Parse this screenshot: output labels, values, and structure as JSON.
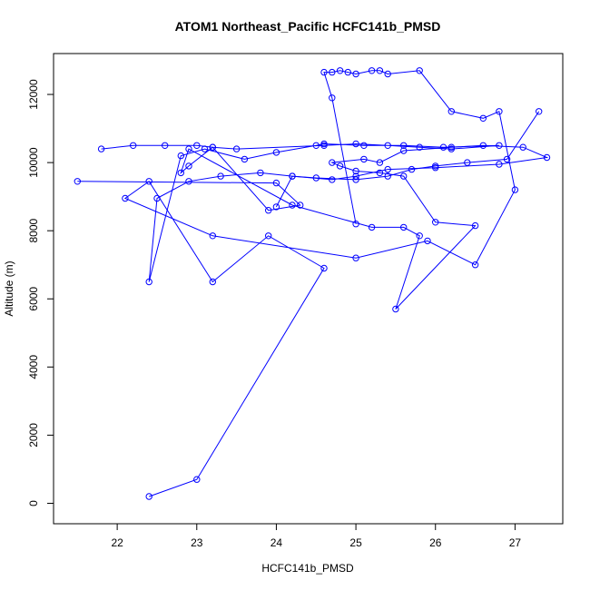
{
  "chart_data": {
    "type": "line",
    "title": "ATOM1 Northeast_Pacific HCFC141b_PMSD",
    "xlabel": "HCFC141b_PMSD",
    "ylabel": "Altitude (m)",
    "xlim": [
      21.2,
      27.6
    ],
    "ylim": [
      -600,
      13200
    ],
    "x_ticks": [
      22,
      23,
      24,
      25,
      26,
      27
    ],
    "y_ticks": [
      0,
      2000,
      4000,
      6000,
      8000,
      10000,
      12000
    ],
    "series_color": "#0000ff",
    "marker": "open-circle",
    "series": [
      {
        "x": [
          21.8,
          22.2,
          22.6,
          23.0,
          23.2,
          23.5,
          24.6,
          25.0,
          25.4,
          25.8,
          26.2,
          26.8,
          26.1,
          25.6,
          25.1,
          24.6,
          24.5,
          24.0,
          23.6,
          23.1,
          22.8,
          22.4,
          22.5,
          22.9,
          23.3,
          23.8,
          24.2,
          24.5,
          25.0,
          25.4,
          25.7,
          26.0,
          26.4,
          26.9,
          27.3
        ],
        "y": [
          10400,
          10500,
          10500,
          10500,
          10450,
          10400,
          10500,
          10550,
          10500,
          10450,
          10400,
          10500,
          10450,
          10500,
          10500,
          10550,
          10500,
          10300,
          10100,
          10400,
          10200,
          6500,
          8950,
          9450,
          9600,
          9700,
          9600,
          9550,
          9500,
          9600,
          9800,
          9900,
          10000,
          10100,
          11500
        ]
      },
      {
        "x": [
          21.5,
          24.0,
          24.3,
          23.9,
          23.2,
          22.9,
          22.8,
          22.9,
          24.2,
          25.2,
          25.6,
          25.8,
          25.5,
          26.5,
          26.0,
          25.6,
          25.3,
          25.0,
          24.8,
          24.7,
          25.1,
          25.3,
          25.6,
          26.2,
          26.6,
          27.1,
          27.4,
          26.8,
          26.0,
          25.4,
          25.0,
          24.7,
          24.2,
          24.0
        ],
        "y": [
          9450,
          9400,
          8750,
          8600,
          10450,
          9900,
          9700,
          10400,
          8750,
          8100,
          8100,
          7850,
          5700,
          8150,
          8250,
          9600,
          9700,
          9750,
          9900,
          10000,
          10100,
          10000,
          10350,
          10450,
          10500,
          10450,
          10150,
          9950,
          9850,
          9800,
          9600,
          9500,
          9600,
          8700
        ]
      },
      {
        "x": [
          22.4,
          23.0,
          24.6,
          23.9,
          23.2,
          22.4,
          22.1,
          23.2,
          25.0,
          25.9,
          26.5,
          27.0,
          26.8,
          26.6,
          26.2,
          25.8,
          25.4,
          25.3,
          25.2,
          25.0,
          24.9,
          24.8,
          24.7,
          24.6,
          24.7,
          25.0
        ],
        "y": [
          200,
          700,
          6900,
          7850,
          6500,
          9450,
          8950,
          7850,
          7200,
          7700,
          7000,
          9200,
          11500,
          11300,
          11500,
          12700,
          12600,
          12700,
          12700,
          12600,
          12650,
          12700,
          12650,
          12650,
          11900,
          8200
        ]
      }
    ]
  }
}
